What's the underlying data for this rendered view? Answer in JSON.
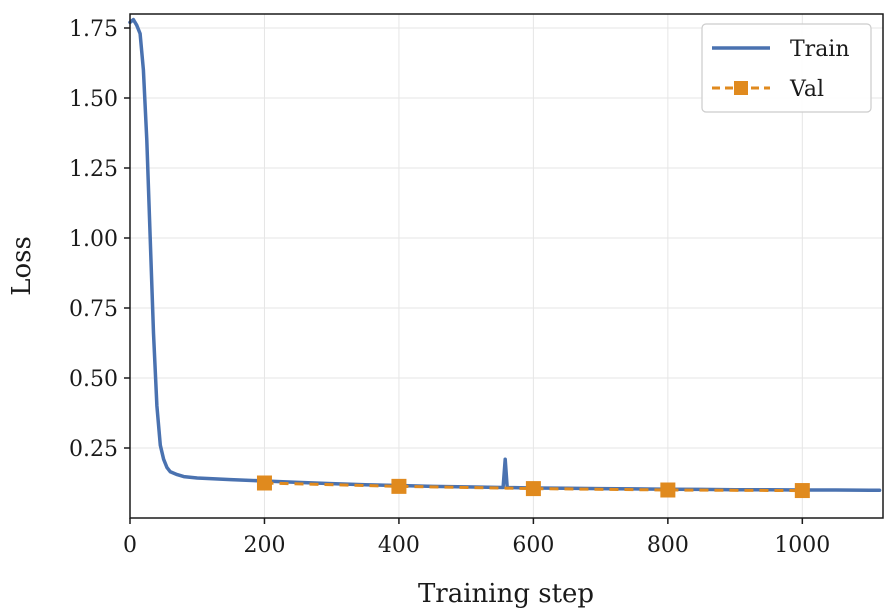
{
  "chart_data": {
    "type": "line",
    "xlabel": "Training step",
    "ylabel": "Loss",
    "xlim": [
      0,
      1120
    ],
    "ylim": [
      0.0,
      1.8
    ],
    "xticks": [
      0,
      200,
      400,
      600,
      800,
      1000
    ],
    "yticks": [
      0.25,
      0.5,
      0.75,
      1.0,
      1.25,
      1.5,
      1.75
    ],
    "xtick_labels": [
      "0",
      "200",
      "400",
      "600",
      "800",
      "1000"
    ],
    "ytick_labels": [
      "0.25",
      "0.50",
      "0.75",
      "1.00",
      "1.25",
      "1.50",
      "1.75"
    ],
    "grid": true,
    "legend_position": "top-right",
    "colors": {
      "train": "#4a72b0",
      "val": "#e08a1e"
    },
    "series": [
      {
        "name": "Train",
        "style": "solid",
        "x": [
          0,
          5,
          10,
          15,
          20,
          25,
          30,
          35,
          40,
          45,
          50,
          55,
          60,
          70,
          80,
          100,
          150,
          200,
          250,
          300,
          350,
          400,
          450,
          500,
          555,
          558,
          561,
          600,
          650,
          700,
          750,
          800,
          850,
          900,
          950,
          1000,
          1050,
          1100,
          1115
        ],
        "y": [
          1.77,
          1.78,
          1.76,
          1.73,
          1.6,
          1.35,
          1.0,
          0.66,
          0.4,
          0.26,
          0.21,
          0.18,
          0.165,
          0.155,
          0.148,
          0.143,
          0.137,
          0.132,
          0.127,
          0.123,
          0.119,
          0.116,
          0.113,
          0.111,
          0.109,
          0.21,
          0.109,
          0.107,
          0.106,
          0.105,
          0.104,
          0.103,
          0.102,
          0.101,
          0.101,
          0.1,
          0.1,
          0.099,
          0.099
        ]
      },
      {
        "name": "Val",
        "style": "dashed",
        "marker": "square",
        "x": [
          200,
          400,
          600,
          800,
          1000
        ],
        "y": [
          0.125,
          0.113,
          0.105,
          0.1,
          0.098
        ]
      }
    ]
  }
}
